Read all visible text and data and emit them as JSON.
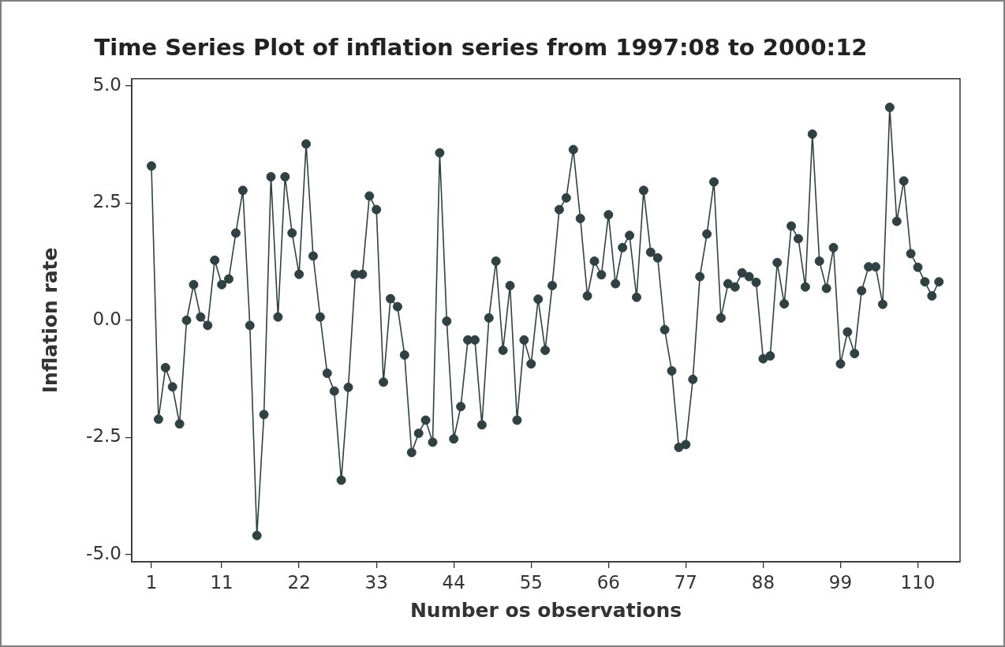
{
  "chart_data": {
    "type": "line",
    "title": "Time Series Plot of inflation series from 1997:08 to 2000:12",
    "xlabel": "Number os observations",
    "ylabel": "Inflation rate",
    "x": [
      1,
      2,
      3,
      4,
      5,
      6,
      7,
      8,
      9,
      10,
      11,
      12,
      13,
      14,
      15,
      16,
      17,
      18,
      19,
      20,
      21,
      22,
      23,
      24,
      25,
      26,
      27,
      28,
      29,
      30,
      31,
      32,
      33,
      34,
      35,
      36,
      37,
      38,
      39,
      40,
      41,
      42,
      43,
      44,
      45,
      46,
      47,
      48,
      49,
      50,
      51,
      52,
      53,
      54,
      55,
      56,
      57,
      58,
      59,
      60,
      61,
      62,
      63,
      64,
      65,
      66,
      67,
      68,
      69,
      70,
      71,
      72,
      73,
      74,
      75,
      76,
      77,
      78,
      79,
      80,
      81,
      82,
      83,
      84,
      85,
      86,
      87,
      88,
      89,
      90,
      91,
      92,
      93,
      94,
      95,
      96,
      97,
      98,
      99,
      100,
      101,
      102,
      103,
      104,
      105,
      106,
      107,
      108,
      109,
      110,
      111,
      112,
      113
    ],
    "series": [
      {
        "color": "#2f4142",
        "values": [
          3.29,
          -2.11,
          -1.01,
          -1.42,
          -2.21,
          0.0,
          0.76,
          0.07,
          -0.11,
          1.28,
          0.76,
          0.88,
          1.86,
          2.77,
          -0.11,
          -4.59,
          -2.01,
          3.06,
          0.07,
          3.06,
          1.86,
          0.98,
          3.76,
          1.37,
          0.07,
          -1.13,
          -1.51,
          -3.41,
          -1.43,
          0.98,
          0.98,
          2.65,
          2.36,
          -1.32,
          0.46,
          0.29,
          -0.74,
          -2.82,
          -2.41,
          -2.13,
          -2.6,
          3.57,
          -0.02,
          -2.53,
          -1.84,
          -0.42,
          -0.42,
          -2.23,
          0.05,
          1.26,
          -0.64,
          0.74,
          -2.13,
          -0.42,
          -0.93,
          0.45,
          -0.64,
          0.74,
          2.36,
          2.61,
          3.64,
          2.17,
          0.52,
          1.26,
          0.97,
          2.25,
          0.78,
          1.55,
          1.81,
          0.49,
          2.77,
          1.45,
          1.33,
          -0.2,
          -1.08,
          -2.71,
          -2.65,
          -1.26,
          0.93,
          1.84,
          2.95,
          0.05,
          0.78,
          0.71,
          1.01,
          0.93,
          0.81,
          -0.82,
          -0.76,
          1.23,
          0.35,
          2.01,
          1.74,
          0.71,
          3.97,
          1.26,
          0.68,
          1.55,
          -0.93,
          -0.25,
          -0.71,
          0.63,
          1.14,
          1.14,
          0.34,
          4.54,
          2.11,
          2.97,
          1.42,
          1.13,
          0.82,
          0.52,
          0.82
        ]
      }
    ],
    "xlim": [
      -1.8,
      116
    ],
    "xticks": [
      1,
      11,
      22,
      33,
      44,
      55,
      66,
      77,
      88,
      99,
      110
    ],
    "ylim": [
      -5.15,
      5.15
    ],
    "yticks": [
      {
        "value": -5,
        "label": "-5.0"
      },
      {
        "value": -2.5,
        "label": "-2.5"
      },
      {
        "value": 0,
        "label": "0.0"
      },
      {
        "value": 2.5,
        "label": "2.5"
      },
      {
        "value": 5,
        "label": "5.0"
      }
    ],
    "marker": "circle",
    "line_style": "solid"
  }
}
